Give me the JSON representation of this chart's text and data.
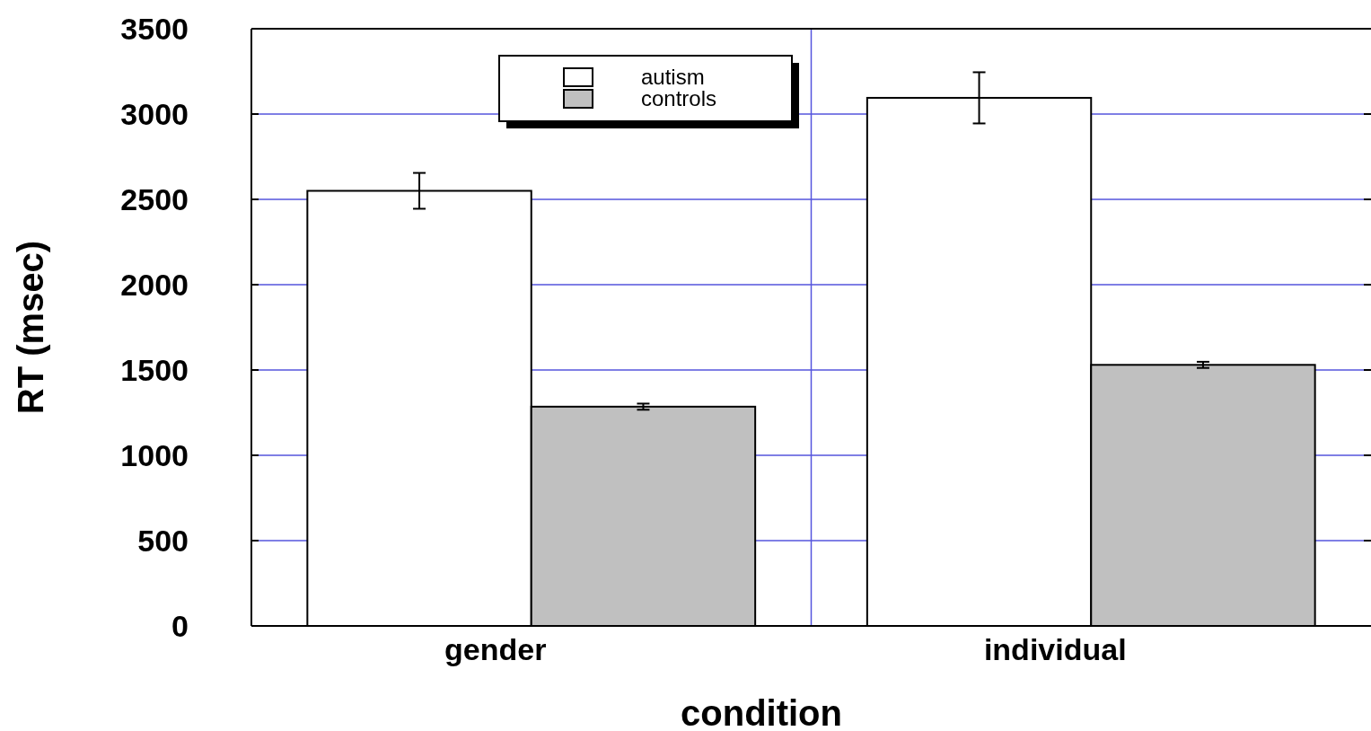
{
  "chart_data": {
    "type": "bar",
    "xlabel": "condition",
    "ylabel": "RT (msec)",
    "categories": [
      "gender",
      "individual"
    ],
    "series": [
      {
        "name": "autism",
        "color": "#ffffff",
        "values": [
          2550,
          3095
        ],
        "errors": [
          105,
          150
        ]
      },
      {
        "name": "controls",
        "color": "#c0c0c0",
        "values": [
          1285,
          1530
        ],
        "errors": [
          18,
          18
        ]
      }
    ],
    "ylim": [
      0,
      3500
    ],
    "yticks": [
      0,
      500,
      1000,
      1500,
      2000,
      2500,
      3000,
      3500
    ],
    "grid": true,
    "legend": "top"
  }
}
